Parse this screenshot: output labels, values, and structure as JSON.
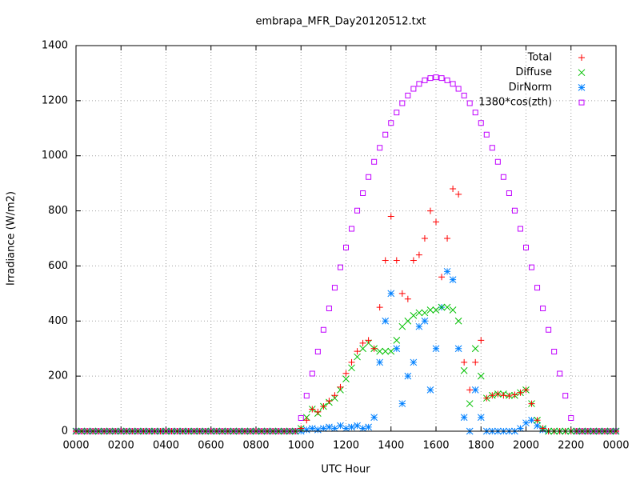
{
  "chart_data": {
    "type": "scatter",
    "title": "embrapa_MFR_Day20120512.txt",
    "xlabel": "UTC Hour",
    "ylabel": "Irradiance (W/m2)",
    "xlim": [
      0,
      24
    ],
    "ylim": [
      0,
      1400
    ],
    "xticks": [
      {
        "value": 0,
        "label": "0000"
      },
      {
        "value": 2,
        "label": "0200"
      },
      {
        "value": 4,
        "label": "0400"
      },
      {
        "value": 6,
        "label": "0600"
      },
      {
        "value": 8,
        "label": "0800"
      },
      {
        "value": 10,
        "label": "1000"
      },
      {
        "value": 12,
        "label": "1200"
      },
      {
        "value": 14,
        "label": "1400"
      },
      {
        "value": 16,
        "label": "1600"
      },
      {
        "value": 18,
        "label": "1800"
      },
      {
        "value": 20,
        "label": "2000"
      },
      {
        "value": 22,
        "label": "2200"
      },
      {
        "value": 24,
        "label": "0000"
      }
    ],
    "yticks": [
      0,
      200,
      400,
      600,
      800,
      1000,
      1200,
      1400
    ],
    "grid": true,
    "legend": "top-right",
    "x": [
      0,
      0.25,
      0.5,
      0.75,
      1,
      1.25,
      1.5,
      1.75,
      2,
      2.25,
      2.5,
      2.75,
      3,
      3.25,
      3.5,
      3.75,
      4,
      4.25,
      4.5,
      4.75,
      5,
      5.25,
      5.5,
      5.75,
      6,
      6.25,
      6.5,
      6.75,
      7,
      7.25,
      7.5,
      7.75,
      8,
      8.25,
      8.5,
      8.75,
      9,
      9.25,
      9.5,
      9.75,
      10,
      10.25,
      10.5,
      10.75,
      11,
      11.25,
      11.5,
      11.75,
      12,
      12.25,
      12.5,
      12.75,
      13,
      13.25,
      13.5,
      13.75,
      14,
      14.25,
      14.5,
      14.75,
      15,
      15.25,
      15.5,
      15.75,
      16,
      16.25,
      16.5,
      16.75,
      17,
      17.25,
      17.5,
      17.75,
      18,
      18.25,
      18.5,
      18.75,
      19,
      19.25,
      19.5,
      19.75,
      20,
      20.25,
      20.5,
      20.75,
      21,
      21.25,
      21.5,
      21.75,
      22,
      22.25,
      22.5,
      22.75,
      23,
      23.25,
      23.5,
      23.75,
      24
    ],
    "series": [
      {
        "name": "1380*cos(zth)",
        "color": "#c000ff",
        "marker": "square",
        "values": [
          0,
          0,
          0,
          0,
          0,
          0,
          0,
          0,
          0,
          0,
          0,
          0,
          0,
          0,
          0,
          0,
          0,
          0,
          0,
          0,
          0,
          0,
          0,
          0,
          0,
          0,
          0,
          0,
          0,
          0,
          0,
          0,
          0,
          0,
          0,
          0,
          0,
          0,
          0,
          0,
          48,
          129,
          209,
          289,
          368,
          446,
          521,
          595,
          667,
          735,
          801,
          864,
          923,
          978,
          1029,
          1077,
          1119,
          1157,
          1191,
          1219,
          1243,
          1261,
          1274,
          1282,
          1285,
          1282,
          1274,
          1261,
          1243,
          1219,
          1191,
          1157,
          1119,
          1077,
          1029,
          978,
          923,
          864,
          801,
          735,
          667,
          595,
          521,
          446,
          368,
          289,
          209,
          129,
          48,
          0,
          0,
          0,
          0,
          0,
          0,
          0,
          0
        ]
      },
      {
        "name": "DirNorm",
        "color": "#0080ff",
        "marker": "star",
        "values": [
          0,
          0,
          0,
          0,
          0,
          0,
          0,
          0,
          0,
          0,
          0,
          0,
          0,
          0,
          0,
          0,
          0,
          0,
          0,
          0,
          0,
          0,
          0,
          0,
          0,
          0,
          0,
          0,
          0,
          0,
          0,
          0,
          0,
          0,
          0,
          0,
          0,
          0,
          0,
          0,
          0,
          5,
          10,
          5,
          10,
          15,
          10,
          20,
          10,
          15,
          20,
          10,
          15,
          50,
          250,
          400,
          500,
          300,
          100,
          200,
          250,
          380,
          400,
          150,
          300,
          450,
          580,
          550,
          300,
          50,
          0,
          150,
          50,
          0,
          0,
          0,
          0,
          0,
          0,
          10,
          30,
          40,
          20,
          5,
          0,
          0,
          0,
          0,
          0,
          0,
          0,
          0,
          0,
          0,
          0,
          0,
          0
        ]
      },
      {
        "name": "Diffuse",
        "color": "#00c000",
        "marker": "cross",
        "values": [
          0,
          0,
          0,
          0,
          0,
          0,
          0,
          0,
          0,
          0,
          0,
          0,
          0,
          0,
          0,
          0,
          0,
          0,
          0,
          0,
          0,
          0,
          0,
          0,
          0,
          0,
          0,
          0,
          0,
          0,
          0,
          0,
          0,
          0,
          0,
          0,
          0,
          0,
          0,
          0,
          10,
          50,
          80,
          65,
          90,
          105,
          120,
          150,
          190,
          230,
          270,
          300,
          320,
          300,
          290,
          290,
          290,
          330,
          380,
          400,
          420,
          430,
          430,
          440,
          440,
          450,
          450,
          440,
          400,
          220,
          100,
          300,
          200,
          120,
          130,
          135,
          135,
          130,
          130,
          140,
          150,
          100,
          40,
          10,
          0,
          0,
          0,
          0,
          0,
          0,
          0,
          0,
          0,
          0,
          0,
          0,
          0
        ]
      },
      {
        "name": "Total",
        "color": "#ff0000",
        "marker": "plus",
        "values": [
          0,
          0,
          0,
          0,
          0,
          0,
          0,
          0,
          0,
          0,
          0,
          0,
          0,
          0,
          0,
          0,
          0,
          0,
          0,
          0,
          0,
          0,
          0,
          0,
          0,
          0,
          0,
          0,
          0,
          0,
          0,
          0,
          0,
          0,
          0,
          0,
          0,
          0,
          0,
          0,
          10,
          40,
          80,
          70,
          90,
          110,
          130,
          160,
          210,
          250,
          290,
          320,
          330,
          300,
          450,
          620,
          780,
          620,
          500,
          480,
          620,
          640,
          700,
          800,
          760,
          560,
          700,
          880,
          860,
          250,
          150,
          250,
          330,
          120,
          130,
          135,
          130,
          128,
          132,
          140,
          150,
          100,
          40,
          10,
          0,
          0,
          0,
          0,
          0,
          0,
          0,
          0,
          0,
          0,
          0,
          0,
          0
        ]
      }
    ]
  }
}
